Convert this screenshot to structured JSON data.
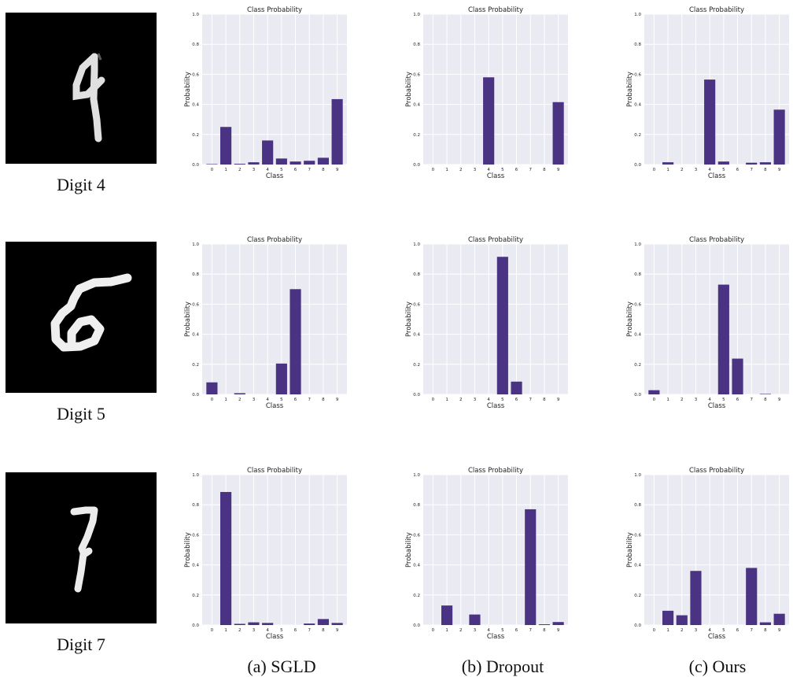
{
  "digits": [
    {
      "label": "Digit 4"
    },
    {
      "label": "Digit 5"
    },
    {
      "label": "Digit 7"
    }
  ],
  "captions": [
    "(a) SGLD",
    "(b) Dropout",
    "(c) Ours"
  ],
  "bar_color": "#4b3384",
  "plot_bg": "#eaeaf2",
  "chart_data": [
    {
      "type": "bar",
      "title": "Class Probability",
      "xlabel": "Class",
      "ylabel": "Probability",
      "ylim": [
        0,
        1.0
      ],
      "yticks": [
        "0.0",
        "0.2",
        "0.4",
        "0.6",
        "0.8",
        "1.0"
      ],
      "categories": [
        "0",
        "1",
        "2",
        "3",
        "4",
        "5",
        "6",
        "7",
        "8",
        "9"
      ],
      "values": [
        0.003,
        0.25,
        0.005,
        0.015,
        0.16,
        0.04,
        0.02,
        0.025,
        0.045,
        0.435
      ]
    },
    {
      "type": "bar",
      "title": "Class Probability",
      "xlabel": "Class",
      "ylabel": "Probability",
      "ylim": [
        0,
        1.0
      ],
      "yticks": [
        "0.0",
        "0.2",
        "0.4",
        "0.6",
        "0.8",
        "1.0"
      ],
      "categories": [
        "0",
        "1",
        "2",
        "3",
        "4",
        "5",
        "6",
        "7",
        "8",
        "9"
      ],
      "values": [
        0,
        0,
        0,
        0,
        0.58,
        0,
        0,
        0,
        0,
        0.415
      ]
    },
    {
      "type": "bar",
      "title": "Class Probability",
      "xlabel": "Class",
      "ylabel": "Probability",
      "ylim": [
        0,
        1.0
      ],
      "yticks": [
        "0.0",
        "0.2",
        "0.4",
        "0.6",
        "0.8",
        "1.0"
      ],
      "categories": [
        "0",
        "1",
        "2",
        "3",
        "4",
        "5",
        "6",
        "7",
        "8",
        "9"
      ],
      "values": [
        0,
        0.015,
        0,
        0,
        0.565,
        0.02,
        0,
        0.012,
        0.015,
        0.365
      ]
    },
    {
      "type": "bar",
      "title": "Class Probability",
      "xlabel": "Class",
      "ylabel": "Probability",
      "ylim": [
        0,
        1.0
      ],
      "yticks": [
        "0.0",
        "0.2",
        "0.4",
        "0.6",
        "0.8",
        "1.0"
      ],
      "categories": [
        "0",
        "1",
        "2",
        "3",
        "4",
        "5",
        "6",
        "7",
        "8",
        "9"
      ],
      "values": [
        0.08,
        0,
        0.008,
        0,
        0,
        0.205,
        0.7,
        0,
        0,
        0
      ]
    },
    {
      "type": "bar",
      "title": "Class Probability",
      "xlabel": "Class",
      "ylabel": "Probability",
      "ylim": [
        0,
        1.0
      ],
      "yticks": [
        "0.0",
        "0.2",
        "0.4",
        "0.6",
        "0.8",
        "1.0"
      ],
      "categories": [
        "0",
        "1",
        "2",
        "3",
        "4",
        "5",
        "6",
        "7",
        "8",
        "9"
      ],
      "values": [
        0,
        0,
        0,
        0,
        0,
        0.915,
        0.085,
        0,
        0,
        0
      ]
    },
    {
      "type": "bar",
      "title": "Class Probability",
      "xlabel": "Class",
      "ylabel": "Probability",
      "ylim": [
        0,
        1.0
      ],
      "yticks": [
        "0.0",
        "0.2",
        "0.4",
        "0.6",
        "0.8",
        "1.0"
      ],
      "categories": [
        "0",
        "1",
        "2",
        "3",
        "4",
        "5",
        "6",
        "7",
        "8",
        "9"
      ],
      "values": [
        0.028,
        0,
        0,
        0,
        0,
        0.73,
        0.238,
        0,
        0.003,
        0
      ]
    },
    {
      "type": "bar",
      "title": "Class Probability",
      "xlabel": "Class",
      "ylabel": "Probability",
      "ylim": [
        0,
        1.0
      ],
      "yticks": [
        "0.0",
        "0.2",
        "0.4",
        "0.6",
        "0.8",
        "1.0"
      ],
      "categories": [
        "0",
        "1",
        "2",
        "3",
        "4",
        "5",
        "6",
        "7",
        "8",
        "9"
      ],
      "values": [
        0,
        0.885,
        0.008,
        0.018,
        0.014,
        0,
        0,
        0.01,
        0.04,
        0.014
      ]
    },
    {
      "type": "bar",
      "title": "Class Probability",
      "xlabel": "Class",
      "ylabel": "Probability",
      "ylim": [
        0,
        1.0
      ],
      "yticks": [
        "0.0",
        "0.2",
        "0.4",
        "0.6",
        "0.8",
        "1.0"
      ],
      "categories": [
        "0",
        "1",
        "2",
        "3",
        "4",
        "5",
        "6",
        "7",
        "8",
        "9"
      ],
      "values": [
        0,
        0.13,
        0,
        0.07,
        0,
        0,
        0,
        0.77,
        0.005,
        0.02
      ]
    },
    {
      "type": "bar",
      "title": "Class Probability",
      "xlabel": "Class",
      "ylabel": "Probability",
      "ylim": [
        0,
        1.0
      ],
      "yticks": [
        "0.0",
        "0.2",
        "0.4",
        "0.6",
        "0.8",
        "1.0"
      ],
      "categories": [
        "0",
        "1",
        "2",
        "3",
        "4",
        "5",
        "6",
        "7",
        "8",
        "9"
      ],
      "values": [
        0,
        0.095,
        0.065,
        0.36,
        0,
        0,
        0,
        0.38,
        0.018,
        0.075
      ]
    }
  ]
}
